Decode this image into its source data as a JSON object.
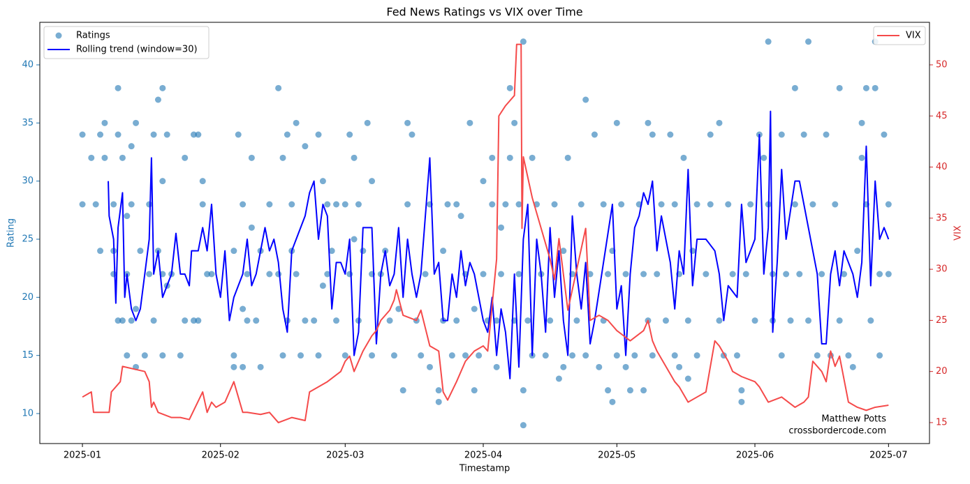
{
  "chart_data": {
    "type": "scatter-line",
    "title": "Fed News Ratings vs VIX over Time",
    "x_label": "Timestamp",
    "y_label": "Rating",
    "y2_label": "VIX",
    "xlim": [
      -9.57,
      190.2
    ],
    "xticks": [
      {
        "value": 0,
        "label": "2025-01"
      },
      {
        "value": 31,
        "label": "2025-02"
      },
      {
        "value": 59,
        "label": "2025-03"
      },
      {
        "value": 90,
        "label": "2025-04"
      },
      {
        "value": 120,
        "label": "2025-05"
      },
      {
        "value": 151,
        "label": "2025-06"
      },
      {
        "value": 181,
        "label": "2025-07"
      }
    ],
    "ylim": [
      7.42,
      43.66
    ],
    "yticks": [
      10,
      15,
      20,
      25,
      30,
      35,
      40
    ],
    "y2lim": [
      12.95,
      54.16
    ],
    "y2ticks": [
      15,
      20,
      25,
      30,
      35,
      40,
      45,
      50
    ],
    "legend_loc": "upper left",
    "legend2_loc": "upper right",
    "annotations": [
      "Matthew Potts",
      "crossbordercode.com"
    ],
    "series": [
      {
        "name": "Ratings",
        "kind": "scatter",
        "color": "#1f77b4",
        "x": [
          0,
          0,
          2,
          3,
          4,
          4,
          5,
          5,
          7,
          7,
          7,
          8,
          8,
          8,
          9,
          9,
          10,
          10,
          10,
          11,
          11,
          11,
          12,
          12,
          12,
          13,
          14,
          15,
          15,
          16,
          16,
          17,
          17,
          18,
          18,
          18,
          18,
          19,
          19,
          20,
          22,
          23,
          23,
          25,
          25,
          26,
          26,
          27,
          27,
          28,
          29,
          34,
          34,
          34,
          35,
          36,
          36,
          36,
          37,
          37,
          38,
          38,
          39,
          40,
          40,
          42,
          42,
          44,
          44,
          45,
          45,
          46,
          46,
          47,
          47,
          48,
          48,
          49,
          50,
          50,
          52,
          53,
          53,
          54,
          54,
          55,
          55,
          56,
          57,
          57,
          59,
          59,
          60,
          60,
          61,
          61,
          62,
          62,
          63,
          64,
          65,
          65,
          65,
          67,
          68,
          69,
          70,
          71,
          72,
          73,
          73,
          74,
          75,
          76,
          77,
          78,
          78,
          80,
          80,
          81,
          81,
          82,
          83,
          84,
          84,
          85,
          86,
          86,
          87,
          88,
          88,
          89,
          90,
          90,
          91,
          92,
          92,
          93,
          93,
          94,
          94,
          95,
          96,
          96,
          97,
          97,
          98,
          98,
          99,
          100,
          101,
          101,
          102,
          103,
          104,
          105,
          106,
          107,
          108,
          108,
          109,
          110,
          110,
          111,
          112,
          113,
          114,
          115,
          116,
          117,
          117,
          118,
          118,
          119,
          119,
          120,
          120,
          121,
          122,
          122,
          123,
          124,
          99,
          99,
          125,
          126,
          126,
          127,
          127,
          128,
          128,
          129,
          130,
          131,
          132,
          133,
          133,
          134,
          134,
          135,
          136,
          136,
          137,
          138,
          138,
          140,
          141,
          141,
          113,
          143,
          143,
          144,
          145,
          146,
          147,
          148,
          148,
          149,
          150,
          151,
          152,
          153,
          154,
          155,
          155,
          154,
          157,
          157,
          158,
          159,
          160,
          160,
          161,
          162,
          163,
          163,
          164,
          165,
          166,
          167,
          168,
          169,
          170,
          170,
          171,
          172,
          173,
          174,
          175,
          176,
          177,
          178,
          178,
          179,
          179,
          180,
          181,
          181,
          176,
          175
        ],
        "values": [
          34,
          28,
          32,
          28,
          24,
          34,
          35,
          32,
          24,
          28,
          22,
          38,
          18,
          34,
          32,
          18,
          27,
          22,
          15,
          33,
          28,
          18,
          19,
          14,
          35,
          24,
          15,
          22,
          28,
          18,
          34,
          37,
          24,
          38,
          30,
          22,
          15,
          21,
          34,
          22,
          15,
          32,
          18,
          18,
          34,
          34,
          18,
          30,
          28,
          22,
          22,
          24,
          15,
          14,
          34,
          28,
          19,
          14,
          22,
          18,
          32,
          26,
          18,
          24,
          14,
          28,
          22,
          22,
          38,
          32,
          15,
          34,
          18,
          28,
          24,
          35,
          22,
          15,
          18,
          33,
          18,
          15,
          34,
          30,
          21,
          22,
          28,
          24,
          18,
          28,
          28,
          15,
          34,
          22,
          32,
          25,
          28,
          18,
          24,
          35,
          30,
          15,
          22,
          22,
          24,
          18,
          15,
          19,
          12,
          28,
          35,
          34,
          18,
          15,
          22,
          14,
          28,
          12,
          11,
          24,
          18,
          28,
          15,
          18,
          28,
          27,
          22,
          15,
          35,
          12,
          19,
          15,
          30,
          22,
          18,
          32,
          28,
          18,
          14,
          22,
          26,
          28,
          32,
          38,
          35,
          18,
          22,
          28,
          12,
          18,
          32,
          15,
          28,
          22,
          15,
          18,
          28,
          13,
          24,
          14,
          32,
          22,
          15,
          18,
          28,
          15,
          22,
          34,
          14,
          18,
          28,
          22,
          12,
          24,
          11,
          15,
          35,
          28,
          14,
          22,
          12,
          15,
          9,
          42,
          28,
          22,
          12,
          18,
          35,
          34,
          15,
          22,
          28,
          18,
          34,
          15,
          28,
          22,
          14,
          32,
          18,
          13,
          24,
          28,
          15,
          22,
          28,
          34,
          37,
          35,
          18,
          15,
          28,
          22,
          15,
          12,
          11,
          22,
          28,
          18,
          34,
          32,
          28,
          22,
          18,
          42,
          15,
          34,
          22,
          18,
          38,
          28,
          22,
          34,
          18,
          42,
          28,
          15,
          22,
          34,
          15,
          28,
          38,
          18,
          22,
          15,
          14,
          24,
          32,
          28,
          18,
          42,
          38,
          22,
          15,
          34,
          28,
          22,
          38,
          35
        ]
      },
      {
        "name": "Rolling trend (window=30)",
        "kind": "line",
        "color": "#0000ff",
        "x": [
          5.8,
          6,
          7,
          7.5,
          8,
          9,
          9.5,
          10,
          11,
          12,
          13,
          15,
          15.5,
          16,
          17,
          18,
          19,
          20,
          21,
          22,
          23,
          24,
          24.5,
          26,
          27,
          28,
          29,
          30,
          31,
          32,
          33,
          34,
          35,
          36,
          37,
          38,
          39,
          40,
          41,
          42,
          43,
          44,
          45,
          46,
          47,
          48,
          50,
          51,
          52,
          53,
          54,
          55,
          56,
          57,
          58,
          59,
          60,
          61,
          62,
          63,
          65,
          66,
          67,
          68,
          69,
          70,
          71,
          72,
          73,
          74,
          75,
          76,
          77,
          78,
          79,
          80,
          81,
          82,
          83,
          84,
          85,
          86,
          87,
          88,
          89,
          90,
          91,
          92,
          93,
          94,
          95,
          96,
          97,
          98,
          99,
          100,
          101,
          102,
          103,
          104,
          105,
          106,
          107,
          108,
          109,
          110,
          111,
          112,
          113,
          114,
          115,
          117,
          119,
          120,
          121,
          122,
          123,
          124,
          125,
          126,
          127,
          128,
          129,
          130,
          131,
          132,
          133,
          134,
          135,
          136,
          137,
          138,
          140,
          142,
          143,
          144,
          145,
          147,
          148,
          149,
          150,
          151,
          152,
          153,
          154,
          154.5,
          155,
          156,
          157,
          158,
          160,
          161,
          162,
          163,
          165,
          166,
          167,
          168,
          169,
          170,
          171,
          173,
          174,
          175,
          176,
          177,
          178,
          179,
          180,
          181
        ],
        "values": [
          30,
          27,
          25,
          19.5,
          26,
          29,
          20,
          22,
          19,
          18,
          19,
          25,
          32,
          22,
          24,
          20,
          21,
          22,
          25.5,
          22,
          22,
          21,
          24,
          24,
          26,
          24,
          28,
          22,
          20,
          24,
          18,
          20,
          21,
          22,
          25,
          21,
          22,
          24,
          26,
          24,
          25,
          23,
          19,
          17,
          24,
          25,
          27,
          29,
          30,
          25,
          28,
          27,
          19,
          23,
          23,
          22,
          25,
          15,
          17,
          26,
          26,
          16,
          22,
          24,
          21,
          22,
          26,
          20,
          25,
          22,
          20,
          22,
          27,
          32,
          22,
          23,
          18,
          18,
          22,
          20,
          24,
          21,
          23,
          22,
          20,
          18,
          17,
          20,
          15,
          19,
          17,
          13,
          22,
          14,
          25,
          28,
          15,
          25,
          22,
          17,
          26,
          20,
          24,
          18,
          15,
          27,
          22,
          19,
          23,
          16,
          18,
          23,
          28,
          19,
          21,
          15,
          22,
          26,
          27,
          29,
          28,
          30,
          24,
          27,
          25,
          23,
          19,
          24,
          22,
          31,
          21,
          25,
          25,
          24,
          22,
          18,
          21,
          20,
          28,
          23,
          24,
          25,
          34,
          22,
          26,
          36,
          17,
          23,
          31,
          25,
          30,
          30,
          28,
          26,
          22,
          16,
          16,
          22,
          24,
          21,
          24,
          22,
          20,
          23,
          33,
          21,
          30,
          25,
          26,
          25
        ]
      },
      {
        "name": "VIX",
        "kind": "line",
        "axis": "y2",
        "color": "#f54a4a",
        "x": [
          0,
          2,
          2.5,
          6,
          6.5,
          8.5,
          9,
          14,
          15,
          15.5,
          16,
          17,
          20,
          22,
          24,
          27,
          28,
          29,
          30,
          32,
          34,
          35,
          36,
          37,
          40,
          42,
          44,
          47,
          50,
          51,
          55,
          58,
          59,
          60,
          61,
          63,
          65,
          66,
          67,
          69,
          70,
          70.5,
          72,
          75,
          76,
          78,
          80,
          81,
          82,
          84,
          86,
          88,
          90,
          91,
          93,
          93.5,
          95,
          97,
          97.5,
          98.5,
          98.7,
          99,
          101,
          103,
          105,
          106,
          107,
          109,
          110,
          111,
          113,
          114,
          116,
          118,
          120,
          123,
          126,
          127,
          128,
          129,
          133,
          134,
          136,
          138,
          140,
          142,
          143,
          145,
          146,
          148,
          151,
          152,
          154,
          157,
          160,
          162,
          163,
          164,
          166,
          167,
          168,
          169,
          170,
          172,
          174,
          176,
          178,
          181
        ],
        "values": [
          17.5,
          18,
          16,
          16,
          18,
          19,
          20.5,
          20,
          19,
          16.5,
          17,
          16,
          15.5,
          15.5,
          15.3,
          18,
          16,
          17,
          16.5,
          17,
          19,
          17.5,
          16,
          16,
          15.8,
          16,
          15,
          15.5,
          15.2,
          18,
          19,
          20,
          21,
          21.5,
          20,
          22,
          23.5,
          24,
          25,
          26,
          27,
          28,
          25.5,
          25,
          26,
          22.5,
          22,
          18,
          17.2,
          19,
          21,
          22,
          22.5,
          22,
          31,
          45,
          46,
          47,
          52,
          52,
          34,
          41,
          37,
          34,
          31,
          29,
          33,
          26,
          28,
          30,
          34,
          25,
          25.5,
          25,
          24,
          23,
          24,
          25,
          23,
          22,
          19,
          18.5,
          17,
          17.5,
          18,
          23,
          22.5,
          21,
          20,
          19.5,
          19,
          18.5,
          17,
          17.5,
          16.5,
          17,
          17.5,
          21,
          20,
          19,
          22,
          20.5,
          21.5,
          17,
          16.5,
          16.2,
          16.5,
          16.7
        ]
      }
    ]
  }
}
